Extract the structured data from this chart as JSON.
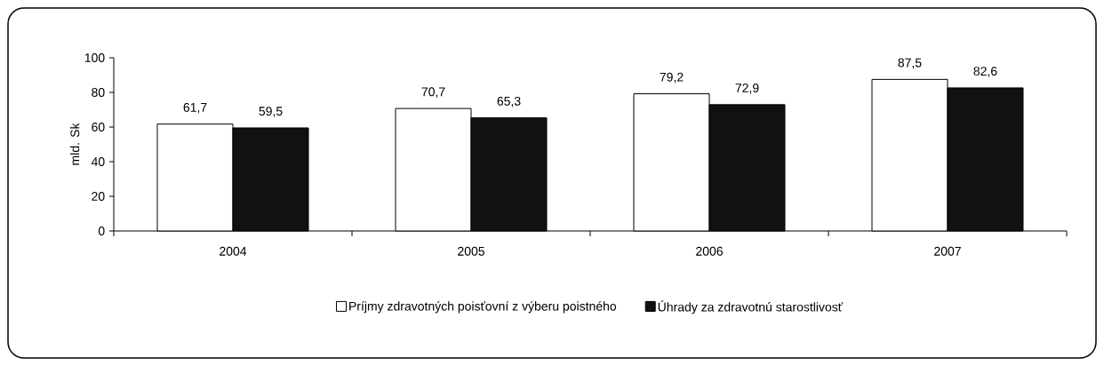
{
  "chart_data": {
    "type": "bar",
    "ylabel": "mld. Sk",
    "categories": [
      "2004",
      "2005",
      "2006",
      "2007"
    ],
    "ylim": [
      0,
      100
    ],
    "yticks": [
      0,
      20,
      40,
      60,
      80,
      100
    ],
    "legend": "bottom",
    "grid": false,
    "series": [
      {
        "name": "Príjmy zdravotných poisťovní z výberu poistného",
        "color": "#ffffff",
        "values": [
          61.7,
          70.7,
          79.2,
          87.5
        ],
        "value_labels": [
          "61,7",
          "70,7",
          "79,2",
          "87,5"
        ]
      },
      {
        "name": "Úhrady za zdravotnú starostlivosť",
        "color": "#111111",
        "values": [
          59.5,
          65.3,
          72.9,
          82.6
        ],
        "value_labels": [
          "59,5",
          "65,3",
          "72,9",
          "82,6"
        ]
      }
    ]
  }
}
